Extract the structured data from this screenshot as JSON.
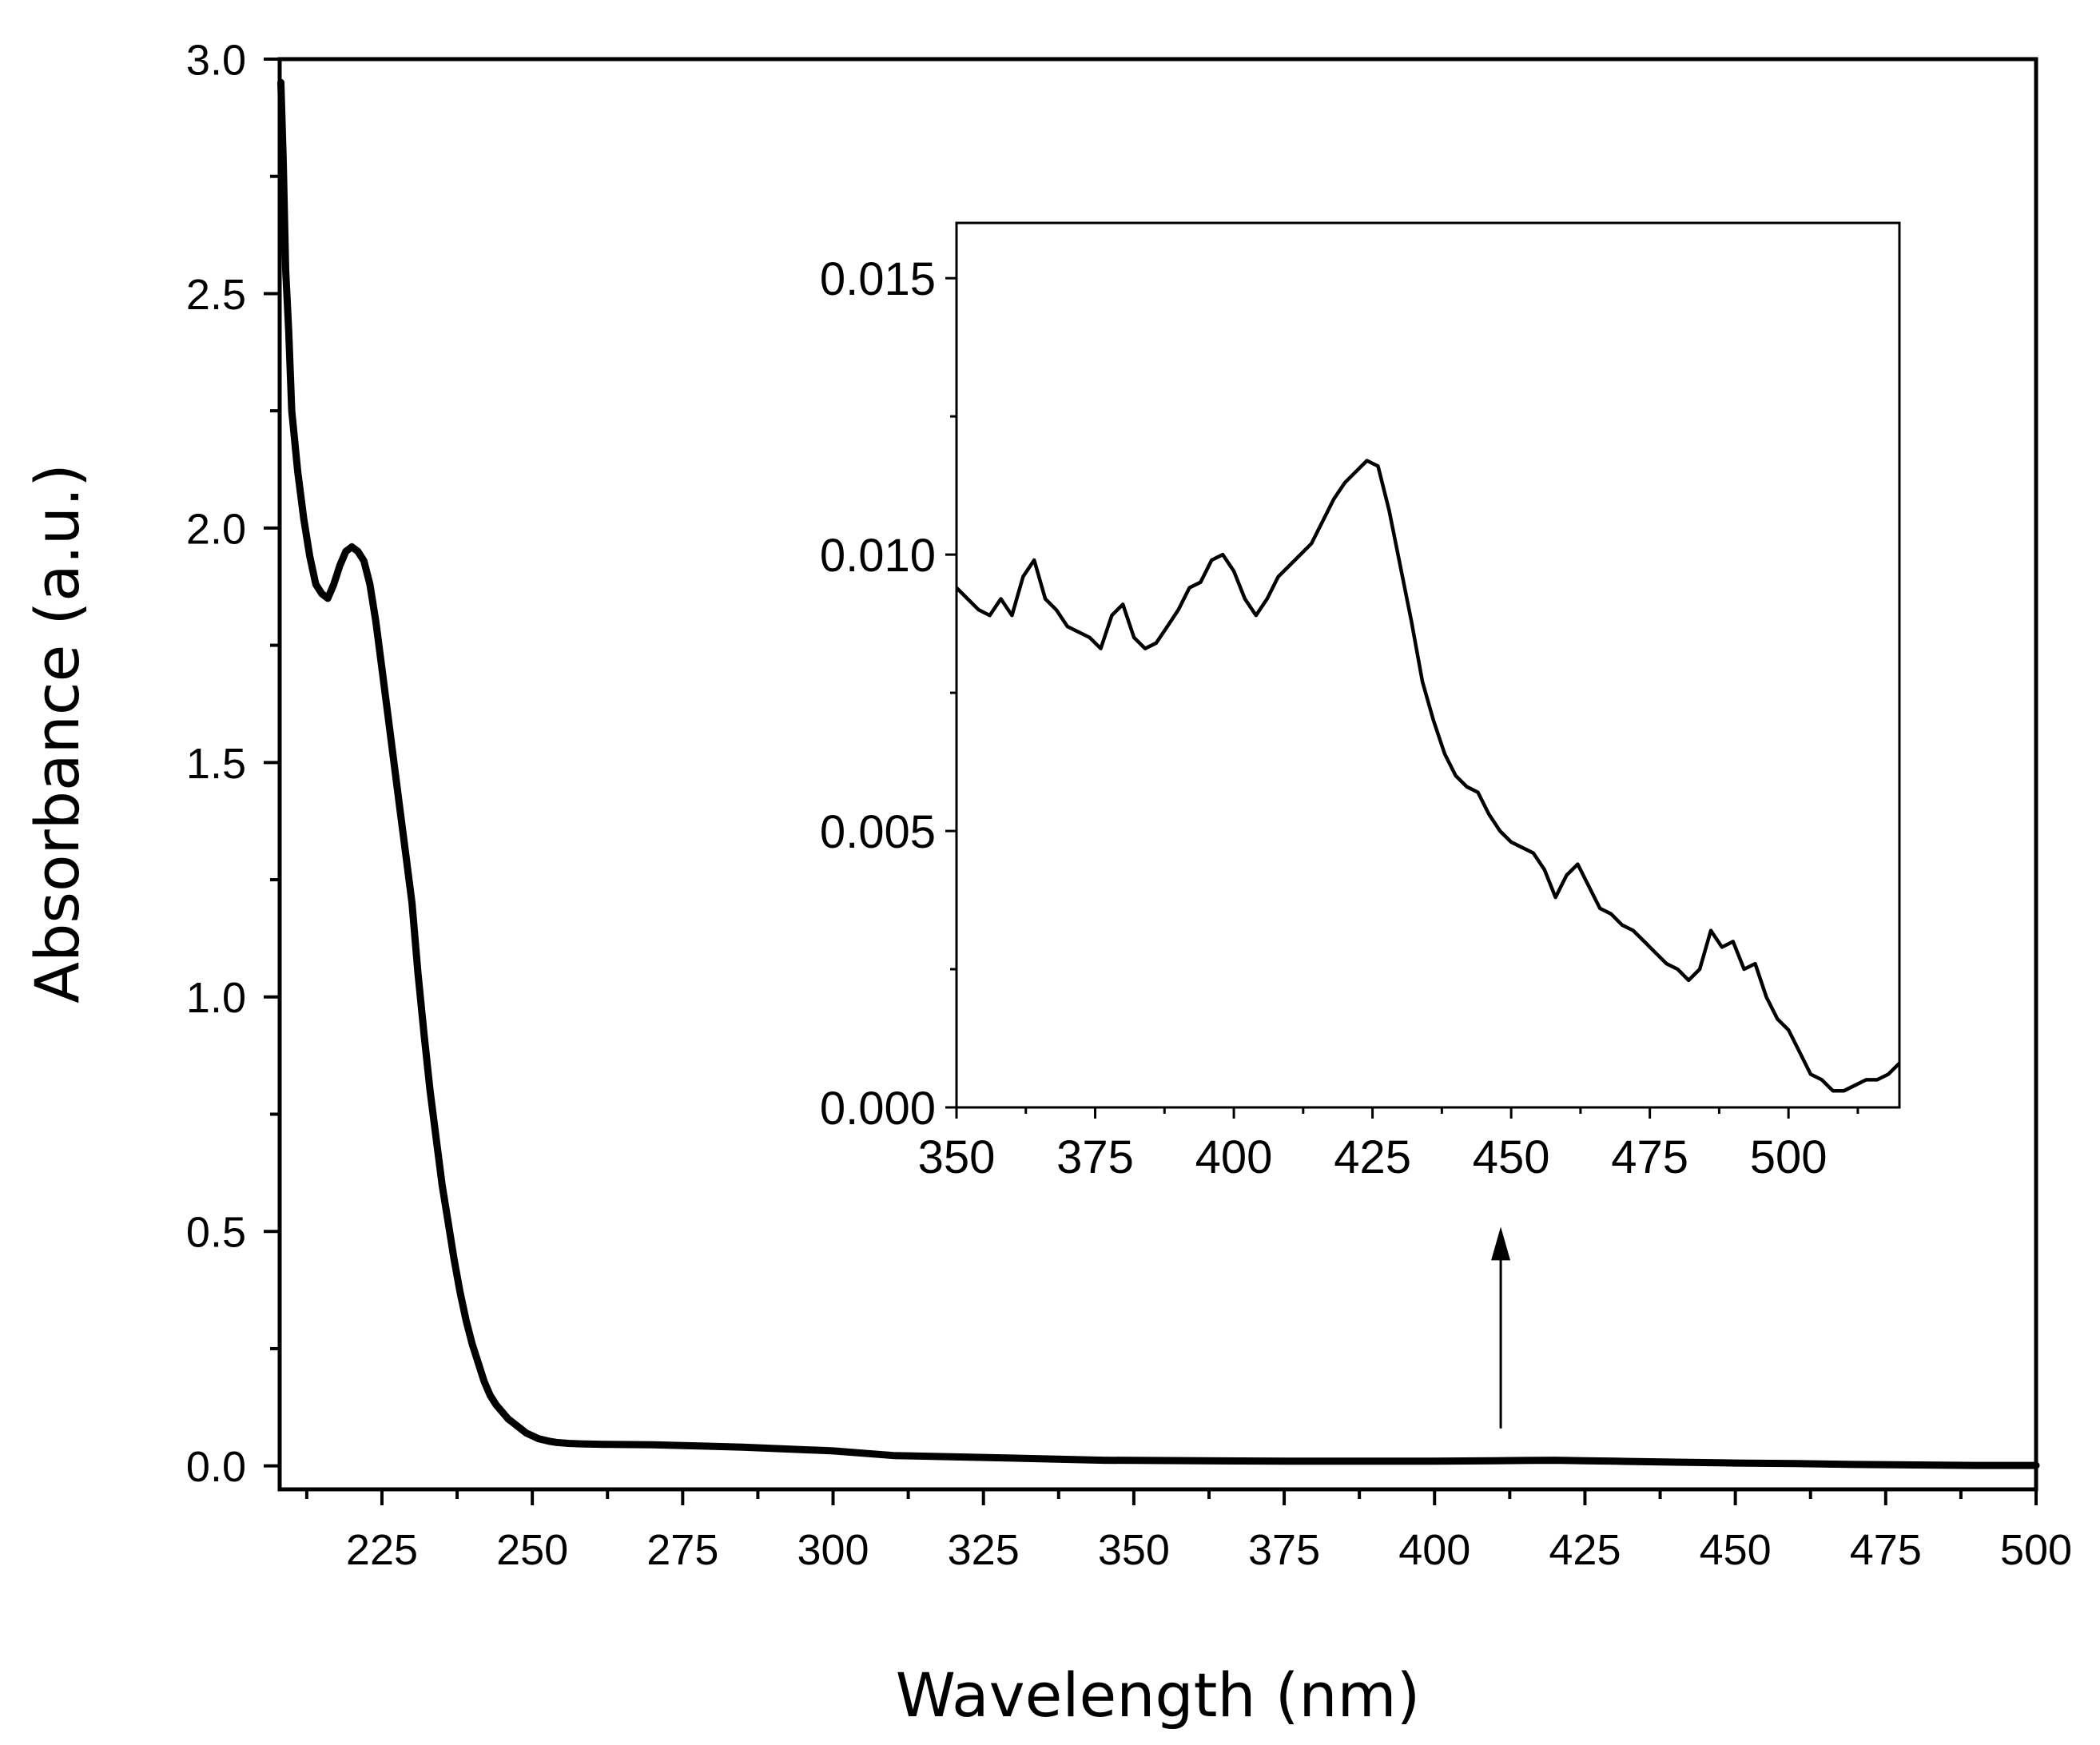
{
  "chart_data": [
    {
      "type": "line",
      "role": "main",
      "xlabel": "Wavelength (nm)",
      "ylabel": "Absorbance (a.u.)",
      "xlim": [
        208,
        500
      ],
      "ylim": [
        -0.05,
        3.0
      ],
      "xticks": [
        225,
        250,
        275,
        300,
        325,
        350,
        375,
        400,
        425,
        450,
        475,
        500
      ],
      "xtick_labels": [
        "225",
        "250",
        "275",
        "300",
        "325",
        "350",
        "375",
        "400",
        "425",
        "450",
        "475",
        "500"
      ],
      "yticks": [
        0.0,
        0.5,
        1.0,
        1.5,
        2.0,
        2.5,
        3.0
      ],
      "ytick_labels": [
        "0.0",
        "0.5",
        "1.0",
        "1.5",
        "2.0",
        "2.5",
        "3.0"
      ],
      "series": [
        {
          "name": "absorbance",
          "x": [
            208.2,
            208.6,
            209,
            209.5,
            210,
            211,
            212,
            213,
            214,
            215,
            216,
            217,
            218,
            219,
            220,
            221,
            222,
            223,
            224,
            225,
            226,
            227,
            228,
            229,
            230,
            231,
            232,
            233,
            234,
            235,
            236,
            237,
            238,
            239,
            240,
            241,
            242,
            243,
            244,
            245,
            246,
            247,
            248,
            249,
            250,
            251,
            252,
            253,
            254,
            256,
            258,
            262,
            270,
            285,
            300,
            310,
            325,
            345,
            375,
            400,
            410,
            420,
            425,
            430,
            440,
            450,
            460,
            470,
            480,
            490,
            500
          ],
          "y": [
            2.95,
            2.78,
            2.55,
            2.42,
            2.25,
            2.12,
            2.02,
            1.94,
            1.88,
            1.86,
            1.85,
            1.88,
            1.92,
            1.95,
            1.96,
            1.95,
            1.93,
            1.88,
            1.8,
            1.7,
            1.6,
            1.5,
            1.4,
            1.3,
            1.2,
            1.05,
            0.92,
            0.8,
            0.7,
            0.6,
            0.52,
            0.44,
            0.37,
            0.31,
            0.26,
            0.22,
            0.18,
            0.15,
            0.13,
            0.115,
            0.1,
            0.09,
            0.08,
            0.07,
            0.064,
            0.058,
            0.055,
            0.052,
            0.05,
            0.048,
            0.047,
            0.046,
            0.045,
            0.04,
            0.032,
            0.022,
            0.018,
            0.012,
            0.01,
            0.01,
            0.011,
            0.012,
            0.011,
            0.01,
            0.008,
            0.006,
            0.005,
            0.003,
            0.002,
            0.001,
            0.001
          ]
        }
      ],
      "annotations": [
        {
          "type": "arrow",
          "x": 411,
          "y_from": 0.08,
          "y_to": 0.51,
          "note": "points to inset"
        }
      ]
    },
    {
      "type": "line",
      "role": "inset",
      "xlabel": "",
      "ylabel": "",
      "xlim": [
        350,
        520
      ],
      "ylim": [
        0.0,
        0.016
      ],
      "xticks": [
        350,
        375,
        400,
        425,
        450,
        475,
        500
      ],
      "xtick_labels": [
        "350",
        "375",
        "400",
        "425",
        "450",
        "475",
        "500"
      ],
      "yticks": [
        0.0,
        0.005,
        0.01,
        0.015
      ],
      "ytick_labels": [
        "0.000",
        "0.005",
        "0.010",
        "0.015"
      ],
      "series": [
        {
          "name": "absorbance (zoom)",
          "x": [
            350,
            352,
            354,
            356,
            358,
            360,
            362,
            364,
            366,
            368,
            370,
            372,
            374,
            376,
            378,
            380,
            382,
            384,
            386,
            388,
            390,
            392,
            394,
            396,
            398,
            400,
            402,
            404,
            406,
            408,
            410,
            412,
            414,
            416,
            418,
            420,
            422,
            424,
            426,
            428,
            430,
            432,
            434,
            436,
            438,
            440,
            442,
            444,
            446,
            448,
            450,
            452,
            454,
            456,
            458,
            460,
            462,
            464,
            466,
            468,
            470,
            472,
            474,
            476,
            478,
            480,
            482,
            484,
            486,
            488,
            490,
            492,
            494,
            496,
            498,
            500,
            502,
            504,
            506,
            508,
            510,
            512,
            514,
            516,
            518,
            520
          ],
          "y": [
            0.0094,
            0.0092,
            0.009,
            0.0089,
            0.0092,
            0.0089,
            0.0096,
            0.0099,
            0.0092,
            0.009,
            0.0087,
            0.0086,
            0.0085,
            0.0083,
            0.0089,
            0.0091,
            0.0085,
            0.0083,
            0.0084,
            0.0087,
            0.009,
            0.0094,
            0.0095,
            0.0099,
            0.01,
            0.0097,
            0.0092,
            0.0089,
            0.0092,
            0.0096,
            0.0098,
            0.01,
            0.0102,
            0.0106,
            0.011,
            0.0113,
            0.0115,
            0.0117,
            0.0116,
            0.0108,
            0.0098,
            0.0088,
            0.0077,
            0.007,
            0.0064,
            0.006,
            0.0058,
            0.0057,
            0.0053,
            0.005,
            0.0048,
            0.0047,
            0.0046,
            0.0043,
            0.0038,
            0.0042,
            0.0044,
            0.004,
            0.0036,
            0.0035,
            0.0033,
            0.0032,
            0.003,
            0.0028,
            0.0026,
            0.0025,
            0.0023,
            0.0025,
            0.0032,
            0.0029,
            0.003,
            0.0025,
            0.0026,
            0.002,
            0.0016,
            0.0014,
            0.001,
            0.0006,
            0.0005,
            0.0003,
            0.0003,
            0.0004,
            0.0005,
            0.0005,
            0.0006,
            0.0008
          ]
        }
      ]
    }
  ]
}
